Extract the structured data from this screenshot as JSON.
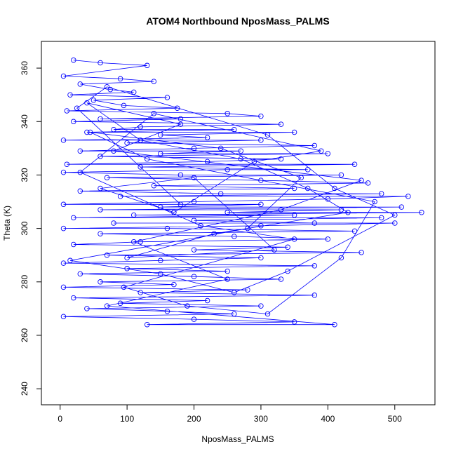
{
  "chart_data": {
    "type": "line",
    "title": "ATOM4 Northbound NposMass_PALMS",
    "xlabel": "NposMass_PALMS",
    "ylabel": "Theta (K)",
    "xlim": [
      -28,
      560
    ],
    "ylim": [
      234,
      370
    ],
    "xticks": [
      0,
      100,
      200,
      300,
      400,
      500
    ],
    "yticks": [
      240,
      260,
      280,
      300,
      320,
      340,
      360
    ],
    "xtick_labels": [
      "0",
      "100",
      "200",
      "300",
      "400",
      "500"
    ],
    "ytick_labels": [
      "240",
      "260",
      "280",
      "300",
      "320",
      "340",
      "360"
    ],
    "grid": false,
    "marker": "open-circle",
    "series": [
      {
        "color": "#0000ff",
        "points": [
          [
            20,
            363
          ],
          [
            60,
            362
          ],
          [
            130,
            361
          ],
          [
            5,
            357
          ],
          [
            90,
            356
          ],
          [
            140,
            355
          ],
          [
            30,
            354
          ],
          [
            75,
            352
          ],
          [
            110,
            351
          ],
          [
            15,
            350
          ],
          [
            160,
            349
          ],
          [
            50,
            348
          ],
          [
            95,
            346
          ],
          [
            175,
            345
          ],
          [
            10,
            344
          ],
          [
            250,
            343
          ],
          [
            300,
            342
          ],
          [
            60,
            341
          ],
          [
            180,
            341
          ],
          [
            20,
            340
          ],
          [
            330,
            339
          ],
          [
            120,
            338
          ],
          [
            80,
            337
          ],
          [
            260,
            337
          ],
          [
            40,
            336
          ],
          [
            350,
            336
          ],
          [
            150,
            335
          ],
          [
            220,
            334
          ],
          [
            5,
            333
          ],
          [
            300,
            333
          ],
          [
            100,
            332
          ],
          [
            380,
            331
          ],
          [
            200,
            330
          ],
          [
            30,
            329
          ],
          [
            270,
            329
          ],
          [
            150,
            328
          ],
          [
            400,
            328
          ],
          [
            60,
            327
          ],
          [
            330,
            326
          ],
          [
            220,
            325
          ],
          [
            10,
            324
          ],
          [
            440,
            324
          ],
          [
            120,
            323
          ],
          [
            370,
            322
          ],
          [
            250,
            322
          ],
          [
            5,
            321
          ],
          [
            180,
            320
          ],
          [
            420,
            320
          ],
          [
            70,
            319
          ],
          [
            300,
            318
          ],
          [
            460,
            317
          ],
          [
            140,
            316
          ],
          [
            350,
            315
          ],
          [
            30,
            314
          ],
          [
            240,
            313
          ],
          [
            480,
            313
          ],
          [
            90,
            312
          ],
          [
            520,
            312
          ],
          [
            400,
            311
          ],
          [
            200,
            310
          ],
          [
            5,
            309
          ],
          [
            300,
            309
          ],
          [
            150,
            308
          ],
          [
            510,
            308
          ],
          [
            60,
            307
          ],
          [
            420,
            307
          ],
          [
            250,
            306
          ],
          [
            540,
            306
          ],
          [
            110,
            305
          ],
          [
            350,
            305
          ],
          [
            20,
            304
          ],
          [
            480,
            304
          ],
          [
            200,
            303
          ],
          [
            380,
            302
          ],
          [
            80,
            302
          ],
          [
            500,
            302
          ],
          [
            300,
            301
          ],
          [
            5,
            300
          ],
          [
            160,
            300
          ],
          [
            440,
            299
          ],
          [
            60,
            298
          ],
          [
            260,
            297
          ],
          [
            400,
            296
          ],
          [
            120,
            295
          ],
          [
            20,
            294
          ],
          [
            340,
            293
          ],
          [
            200,
            292
          ],
          [
            450,
            291
          ],
          [
            70,
            290
          ],
          [
            300,
            289
          ],
          [
            150,
            288
          ],
          [
            5,
            287
          ],
          [
            380,
            286
          ],
          [
            100,
            285
          ],
          [
            250,
            284
          ],
          [
            30,
            283
          ],
          [
            200,
            282
          ],
          [
            330,
            281
          ],
          [
            60,
            280
          ],
          [
            170,
            279
          ],
          [
            5,
            278
          ],
          [
            280,
            277
          ],
          [
            120,
            276
          ],
          [
            380,
            275
          ],
          [
            20,
            274
          ],
          [
            220,
            273
          ],
          [
            90,
            272
          ],
          [
            300,
            271
          ],
          [
            40,
            270
          ],
          [
            160,
            269
          ],
          [
            260,
            268
          ],
          [
            5,
            267
          ],
          [
            200,
            266
          ],
          [
            350,
            265
          ],
          [
            130,
            264
          ],
          [
            410,
            264
          ],
          [
            70,
            271
          ],
          [
            250,
            281
          ],
          [
            110,
            295
          ],
          [
            330,
            307
          ],
          [
            450,
            318
          ],
          [
            80,
            329
          ],
          [
            180,
            339
          ],
          [
            40,
            347
          ],
          [
            120,
            333
          ],
          [
            270,
            326
          ],
          [
            370,
            315
          ],
          [
            430,
            306
          ],
          [
            230,
            298
          ],
          [
            100,
            289
          ],
          [
            320,
            292
          ],
          [
            200,
            319
          ],
          [
            60,
            315
          ],
          [
            170,
            306
          ],
          [
            290,
            325
          ],
          [
            390,
            329
          ],
          [
            140,
            343
          ],
          [
            30,
            321
          ],
          [
            210,
            301
          ],
          [
            350,
            296
          ],
          [
            95,
            278
          ],
          [
            190,
            271
          ],
          [
            310,
            268
          ],
          [
            420,
            289
          ],
          [
            470,
            310
          ],
          [
            130,
            326
          ],
          [
            45,
            336
          ],
          [
            240,
            330
          ],
          [
            360,
            319
          ],
          [
            280,
            300
          ],
          [
            15,
            288
          ],
          [
            150,
            283
          ],
          [
            260,
            276
          ],
          [
            340,
            284
          ],
          [
            500,
            305
          ],
          [
            410,
            315
          ],
          [
            310,
            335
          ],
          [
            70,
            353
          ],
          [
            25,
            345
          ],
          [
            180,
            309
          ]
        ]
      }
    ]
  }
}
